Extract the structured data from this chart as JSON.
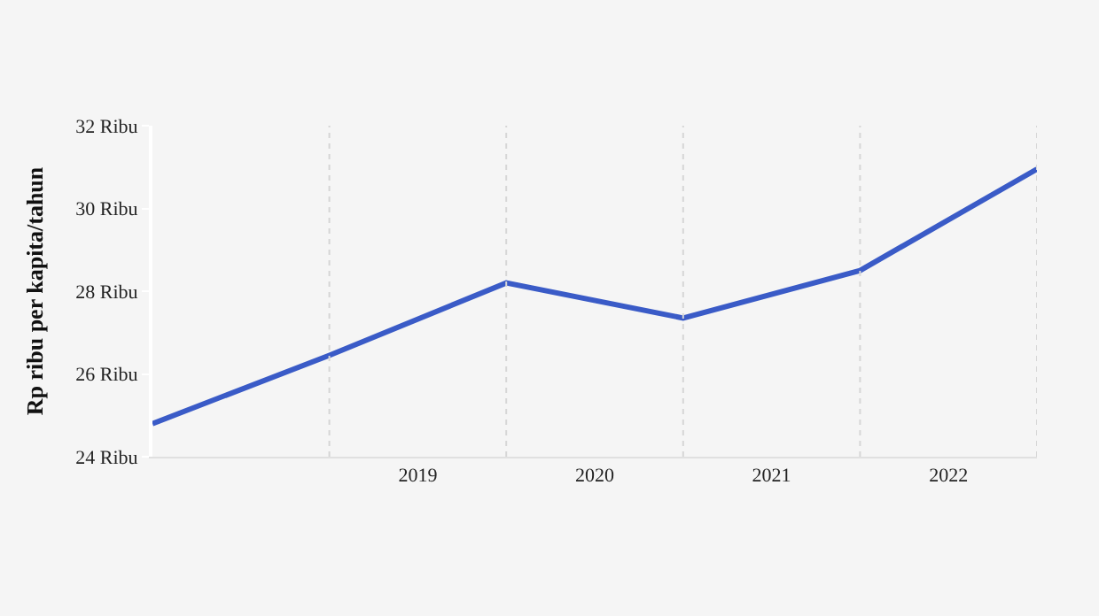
{
  "chart_data": {
    "type": "line",
    "ylabel": "Rp ribu per kapita/tahun",
    "x": [
      2018,
      2019,
      2020,
      2021,
      2022,
      2023
    ],
    "series": [
      {
        "color": "#3a5bc7",
        "values": [
          24.8,
          26.45,
          28.2,
          27.35,
          28.5,
          30.95
        ]
      }
    ],
    "xlim": [
      2018,
      2023
    ],
    "xticks": [
      {
        "value": 2019,
        "label": null
      },
      {
        "value": 2019.5,
        "label": "2019"
      },
      {
        "value": 2020,
        "label": null
      },
      {
        "value": 2020.5,
        "label": "2020"
      },
      {
        "value": 2021,
        "label": null
      },
      {
        "value": 2021.5,
        "label": "2021"
      },
      {
        "value": 2022,
        "label": null
      },
      {
        "value": 2022.5,
        "label": "2022"
      },
      {
        "value": 2023,
        "label": null
      }
    ],
    "ylim": [
      24,
      32
    ],
    "yticks": [
      {
        "value": 24,
        "label": "24 Ribu"
      },
      {
        "value": 26,
        "label": "26 Ribu"
      },
      {
        "value": 28,
        "label": "28 Ribu"
      },
      {
        "value": 30,
        "label": "30 Ribu"
      },
      {
        "value": 32,
        "label": "32 Ribu"
      }
    ],
    "grid": "x",
    "marker": "none",
    "line_style": "solid"
  }
}
